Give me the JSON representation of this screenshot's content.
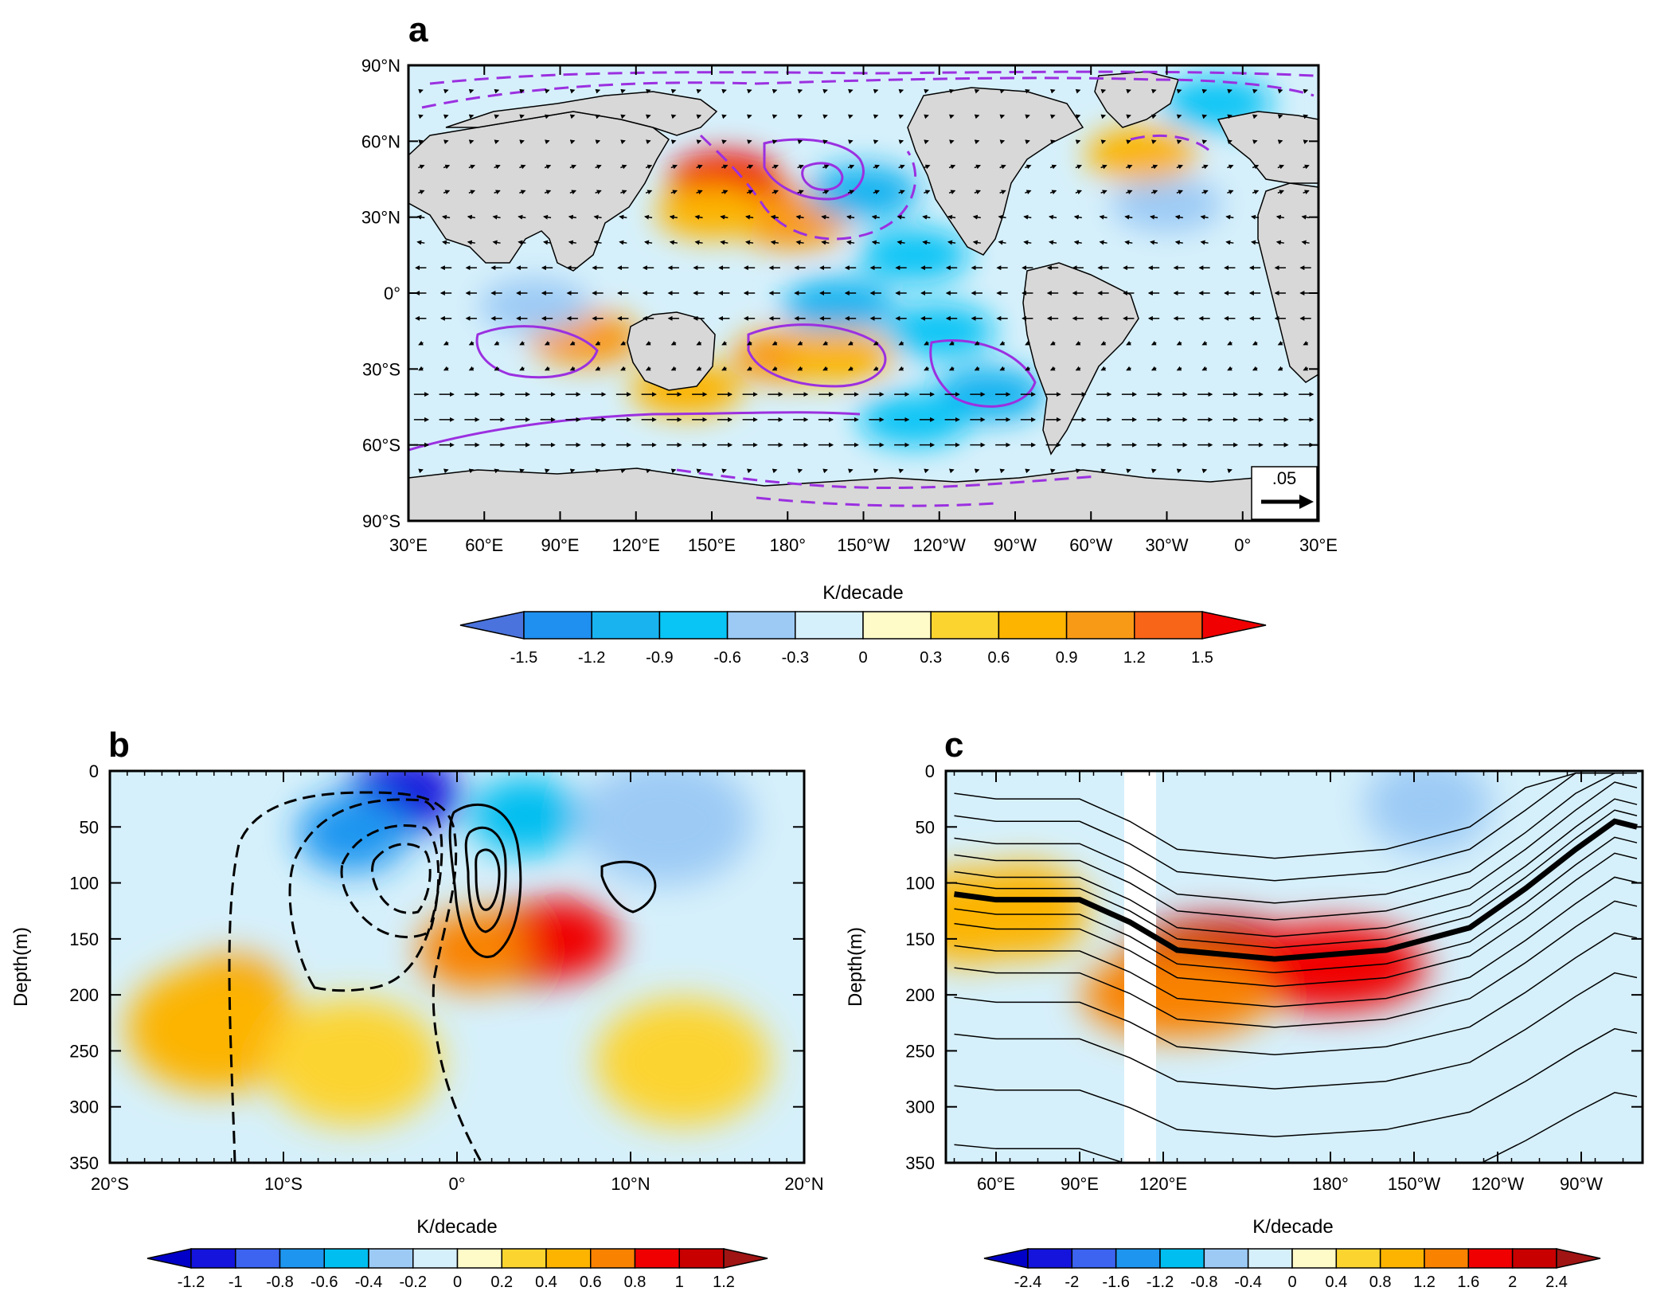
{
  "chart_data": [
    {
      "panel": "a",
      "type": "heatmap",
      "title": "",
      "xlabel": "",
      "ylabel": "",
      "colorbar_label": "K/decade",
      "x_ticks": [
        "30°E",
        "60°E",
        "90°E",
        "120°E",
        "150°E",
        "180°",
        "150°W",
        "120°W",
        "90°W",
        "60°W",
        "30°W",
        "0°",
        "30°E"
      ],
      "y_ticks": [
        "90°N",
        "60°N",
        "30°N",
        "0°",
        "30°S",
        "60°S",
        "90°S"
      ],
      "colorbar_ticks": [
        "-1.5",
        "-1.2",
        "-0.9",
        "-0.6",
        "-0.3",
        "0",
        "0.3",
        "0.6",
        "0.9",
        "1.2",
        "1.5"
      ],
      "colorbar_colors": [
        "#4a73de",
        "#1f8ff0",
        "#19b4f0",
        "#08c5f5",
        "#9ccaf5",
        "#d6f0fb",
        "#fefbc8",
        "#fcd430",
        "#fcb400",
        "#f99a16",
        "#f86418",
        "#f00000"
      ],
      "vector_reference": ".05",
      "field_blobs": [
        {
          "lon": 165,
          "lat": 36,
          "value": 1.2
        },
        {
          "lon": 182,
          "lat": 28,
          "value": 0.9
        },
        {
          "lon": 155,
          "lat": 45,
          "value": 1.5
        },
        {
          "lon": 150,
          "lat": 32,
          "value": 0.6
        },
        {
          "lon": 210,
          "lat": 40,
          "value": -1.2
        },
        {
          "lon": 230,
          "lat": 15,
          "value": -0.9
        },
        {
          "lon": 200,
          "lat": -5,
          "value": -1.2
        },
        {
          "lon": 240,
          "lat": -15,
          "value": -0.9
        },
        {
          "lon": 260,
          "lat": -40,
          "value": -1.2
        },
        {
          "lon": 230,
          "lat": -50,
          "value": -0.9
        },
        {
          "lon": 180,
          "lat": -25,
          "value": 0.9
        },
        {
          "lon": 200,
          "lat": -25,
          "value": 0.6
        },
        {
          "lon": 100,
          "lat": -18,
          "value": 0.9
        },
        {
          "lon": 140,
          "lat": -38,
          "value": 0.6
        },
        {
          "lon": 80,
          "lat": -5,
          "value": -0.6
        },
        {
          "lon": 330,
          "lat": 35,
          "value": -0.6
        },
        {
          "lon": 330,
          "lat": -30,
          "value": -0.3
        },
        {
          "lon": 320,
          "lat": 55,
          "value": 0.6
        },
        {
          "lon": 350,
          "lat": 75,
          "value": -0.9
        }
      ]
    },
    {
      "panel": "b",
      "type": "heatmap",
      "title": "",
      "xlabel": "K/decade",
      "ylabel": "Depth(m)",
      "x_ticks": [
        "20°S",
        "10°S",
        "0°",
        "10°N",
        "20°N"
      ],
      "y_ticks": [
        "0",
        "50",
        "100",
        "150",
        "200",
        "250",
        "300",
        "350"
      ],
      "xlim": [
        -20,
        20
      ],
      "ylim": [
        350,
        0
      ],
      "colorbar_ticks": [
        "-1.2",
        "-1",
        "-0.8",
        "-0.6",
        "-0.4",
        "-0.2",
        "0",
        "0.2",
        "0.4",
        "0.6",
        "0.8",
        "1",
        "1.2"
      ],
      "colorbar_colors": [
        "#0000c8",
        "#1414dc",
        "#3c64f0",
        "#1e96f0",
        "#00bef0",
        "#9ccaf5",
        "#d6f0fb",
        "#fefbc8",
        "#fcd430",
        "#fcb400",
        "#f98200",
        "#f00000",
        "#c80000",
        "#a01414"
      ],
      "field_blobs": [
        {
          "lat": -3,
          "depth": 20,
          "value": -1.2
        },
        {
          "lat": -6,
          "depth": 55,
          "value": -0.8
        },
        {
          "lat": 4,
          "depth": 40,
          "value": -0.6
        },
        {
          "lat": 12,
          "depth": 45,
          "value": -0.4
        },
        {
          "lat": 4,
          "depth": 155,
          "value": 1.0
        },
        {
          "lat": 6,
          "depth": 150,
          "value": 0.8
        },
        {
          "lat": 1,
          "depth": 160,
          "value": 0.6
        },
        {
          "lat": -13,
          "depth": 200,
          "value": 0.6
        },
        {
          "lat": -14,
          "depth": 230,
          "value": 0.4
        },
        {
          "lat": -6,
          "depth": 260,
          "value": 0.2
        },
        {
          "lat": 13,
          "depth": 260,
          "value": 0.2
        }
      ]
    },
    {
      "panel": "c",
      "type": "heatmap",
      "title": "",
      "xlabel": "K/decade",
      "ylabel": "Depth(m)",
      "x_ticks": [
        "60°E",
        "90°E",
        "120°E",
        "180°",
        "150°W",
        "120°W",
        "90°W"
      ],
      "y_ticks": [
        "0",
        "50",
        "100",
        "150",
        "200",
        "250",
        "300",
        "350"
      ],
      "ylim": [
        350,
        0
      ],
      "colorbar_ticks": [
        "-2.4",
        "-2",
        "-1.6",
        "-1.2",
        "-0.8",
        "-0.4",
        "0",
        "0.4",
        "0.8",
        "1.2",
        "1.6",
        "2",
        "2.4"
      ],
      "colorbar_colors": [
        "#0000c8",
        "#1414dc",
        "#3c64f0",
        "#1e96f0",
        "#00bef0",
        "#9ccaf5",
        "#d6f0fb",
        "#fefbc8",
        "#fcd430",
        "#fcb400",
        "#f98200",
        "#f00000",
        "#c80000",
        "#a01414"
      ],
      "thermocline_depth": [
        {
          "lon": 45,
          "depth": 110
        },
        {
          "lon": 60,
          "depth": 115
        },
        {
          "lon": 90,
          "depth": 115
        },
        {
          "lon": 108,
          "depth": 135
        },
        {
          "lon": 125,
          "depth": 160
        },
        {
          "lon": 160,
          "depth": 168
        },
        {
          "lon": 200,
          "depth": 160
        },
        {
          "lon": 230,
          "depth": 140
        },
        {
          "lon": 250,
          "depth": 105
        },
        {
          "lon": 268,
          "depth": 70
        },
        {
          "lon": 282,
          "depth": 45
        },
        {
          "lon": 290,
          "depth": 50
        }
      ],
      "field_blobs": [
        {
          "lon": 140,
          "depth": 170,
          "value": 2.0
        },
        {
          "lon": 180,
          "depth": 175,
          "value": 1.6
        },
        {
          "lon": 125,
          "depth": 200,
          "value": 1.2
        },
        {
          "lon": 70,
          "depth": 125,
          "value": 0.8
        },
        {
          "lon": 50,
          "depth": 130,
          "value": 0.8
        },
        {
          "lon": 215,
          "depth": 30,
          "value": -0.8
        },
        {
          "lon": 265,
          "depth": 60,
          "value": -0.4
        },
        {
          "lon": 275,
          "depth": 180,
          "value": -0.4
        }
      ]
    }
  ]
}
